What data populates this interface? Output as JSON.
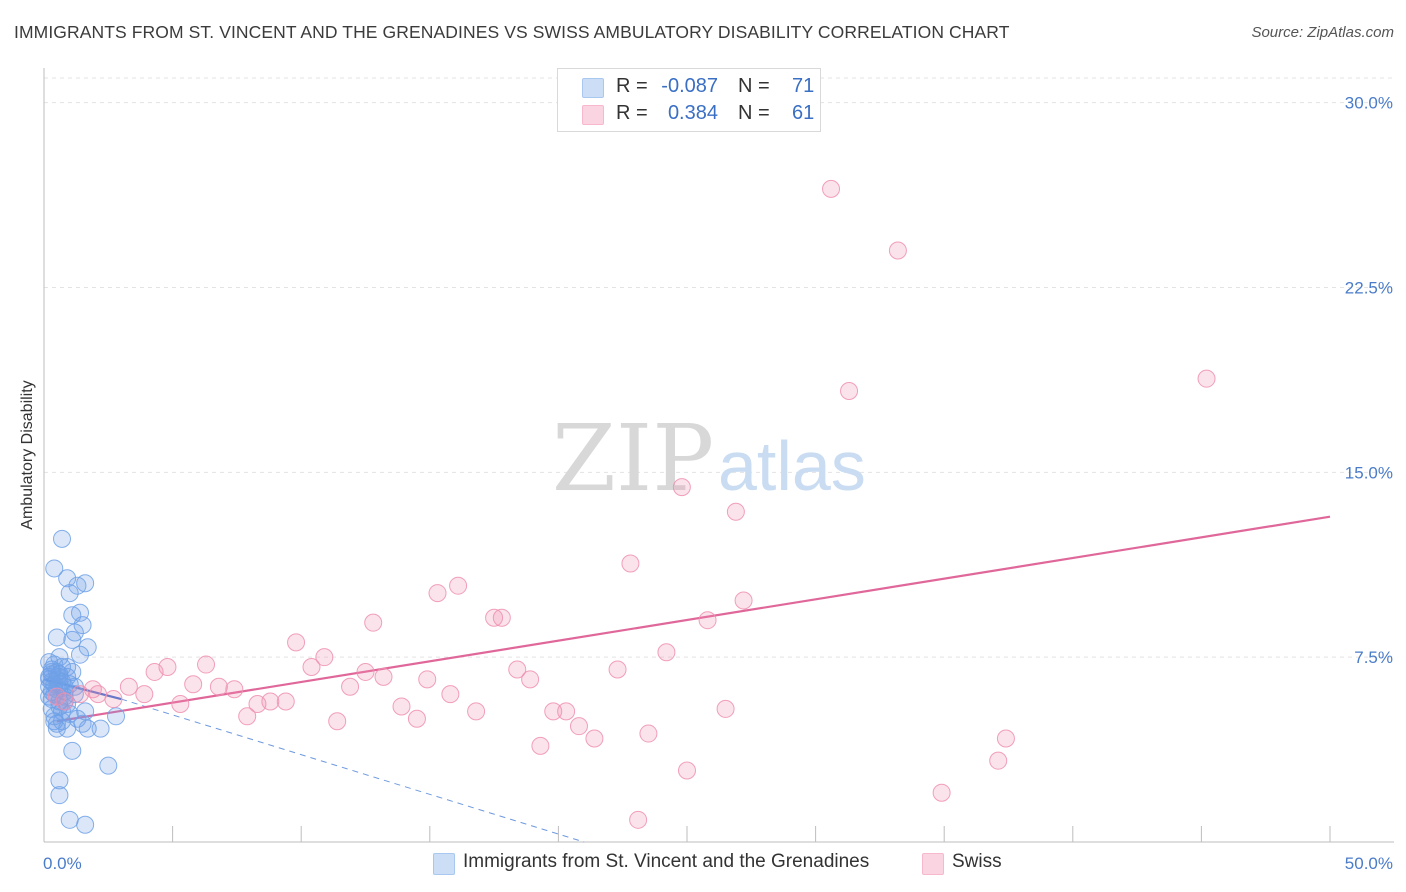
{
  "header": {
    "title": "IMMIGRANTS FROM ST. VINCENT AND THE GRENADINES VS SWISS AMBULATORY DISABILITY CORRELATION CHART",
    "source": "Source: ZipAtlas.com"
  },
  "watermark": {
    "zip": "ZIP",
    "atlas": "atlas"
  },
  "stats": {
    "rows": [
      {
        "r_label": "R =",
        "r_value": "-0.087",
        "n_label": "N =",
        "n_value": "71",
        "color": "#a9c8f0"
      },
      {
        "r_label": "R =",
        "r_value": "0.384",
        "n_label": "N =",
        "n_value": "61",
        "color": "#f7b8cb"
      }
    ]
  },
  "legend": {
    "items": [
      {
        "label": "Immigrants from St. Vincent and the Grenadines",
        "color": "#a9c8f0"
      },
      {
        "label": "Swiss",
        "color": "#f7b8cb"
      }
    ]
  },
  "chart_data": {
    "type": "scatter",
    "title": "IMMIGRANTS FROM ST. VINCENT AND THE GRENADINES VS SWISS AMBULATORY DISABILITY CORRELATION CHART",
    "xlabel": "",
    "ylabel": "Ambulatory Disability",
    "xlim": [
      0,
      50
    ],
    "ylim": [
      0,
      31
    ],
    "x_tick_labels": [
      "0.0%",
      "50.0%"
    ],
    "y_ticks": [
      7.5,
      15.0,
      22.5,
      30.0
    ],
    "y_tick_labels": [
      "7.5%",
      "15.0%",
      "22.5%",
      "30.0%"
    ],
    "grid": "horizontal dashed",
    "legend_position": "bottom-center",
    "series": [
      {
        "name": "Immigrants from St. Vincent and the Grenadines",
        "color": "#6fa1e6",
        "trend": {
          "x": [
            0,
            3
          ],
          "y": [
            6.6,
            5.8
          ],
          "dashed_extension": {
            "x": [
              3,
              21
            ],
            "y": [
              5.8,
              0.0
            ]
          }
        },
        "points": [
          [
            0.2,
            6.6
          ],
          [
            0.3,
            7.0
          ],
          [
            0.2,
            7.3
          ],
          [
            0.3,
            5.8
          ],
          [
            0.4,
            4.9
          ],
          [
            0.5,
            4.6
          ],
          [
            0.3,
            6.1
          ],
          [
            0.4,
            6.4
          ],
          [
            0.6,
            7.5
          ],
          [
            0.5,
            8.3
          ],
          [
            0.6,
            6.8
          ],
          [
            0.7,
            5.3
          ],
          [
            0.8,
            5.7
          ],
          [
            0.4,
            11.1
          ],
          [
            0.7,
            12.3
          ],
          [
            0.9,
            10.7
          ],
          [
            1.0,
            10.1
          ],
          [
            1.1,
            9.2
          ],
          [
            1.2,
            8.5
          ],
          [
            1.4,
            9.3
          ],
          [
            1.5,
            8.8
          ],
          [
            1.6,
            10.5
          ],
          [
            1.3,
            10.4
          ],
          [
            1.7,
            7.9
          ],
          [
            1.4,
            7.6
          ],
          [
            1.1,
            8.2
          ],
          [
            0.9,
            7.1
          ],
          [
            1.0,
            6.4
          ],
          [
            1.2,
            6.0
          ],
          [
            0.8,
            5.9
          ],
          [
            0.6,
            5.5
          ],
          [
            0.4,
            5.1
          ],
          [
            0.5,
            4.8
          ],
          [
            0.7,
            4.9
          ],
          [
            0.9,
            4.6
          ],
          [
            1.1,
            3.7
          ],
          [
            1.3,
            5.0
          ],
          [
            1.5,
            4.8
          ],
          [
            1.7,
            4.6
          ],
          [
            1.6,
            5.3
          ],
          [
            2.2,
            4.6
          ],
          [
            2.8,
            5.1
          ],
          [
            2.5,
            3.1
          ],
          [
            0.6,
            2.5
          ],
          [
            0.6,
            1.9
          ],
          [
            1.0,
            0.9
          ],
          [
            1.6,
            0.7
          ],
          [
            0.3,
            6.9
          ],
          [
            0.2,
            6.3
          ],
          [
            0.3,
            5.4
          ],
          [
            0.5,
            6.2
          ],
          [
            0.6,
            6.7
          ],
          [
            0.7,
            6.5
          ],
          [
            0.8,
            6.1
          ],
          [
            0.9,
            6.7
          ],
          [
            0.4,
            7.2
          ],
          [
            0.2,
            5.9
          ],
          [
            0.3,
            6.5
          ],
          [
            0.5,
            6.9
          ],
          [
            0.6,
            5.7
          ],
          [
            0.7,
            7.1
          ],
          [
            0.9,
            5.6
          ],
          [
            1.0,
            5.2
          ],
          [
            1.1,
            6.9
          ],
          [
            1.2,
            6.3
          ],
          [
            0.8,
            6.3
          ],
          [
            0.5,
            6.6
          ],
          [
            0.3,
            6.8
          ],
          [
            0.4,
            6.0
          ],
          [
            0.6,
            6.4
          ],
          [
            0.2,
            6.7
          ]
        ]
      },
      {
        "name": "Swiss",
        "color": "#ef8fb0",
        "trend": {
          "x": [
            0.5,
            50
          ],
          "y": [
            4.9,
            13.2
          ]
        },
        "points": [
          [
            0.8,
            5.7
          ],
          [
            1.4,
            6.0
          ],
          [
            2.1,
            6.0
          ],
          [
            2.7,
            5.8
          ],
          [
            3.3,
            6.3
          ],
          [
            3.9,
            6.0
          ],
          [
            4.3,
            6.9
          ],
          [
            4.8,
            7.1
          ],
          [
            5.3,
            5.6
          ],
          [
            5.8,
            6.4
          ],
          [
            6.3,
            7.2
          ],
          [
            6.8,
            6.3
          ],
          [
            7.4,
            6.2
          ],
          [
            7.9,
            5.1
          ],
          [
            8.3,
            5.6
          ],
          [
            8.8,
            5.7
          ],
          [
            9.4,
            5.7
          ],
          [
            9.8,
            8.1
          ],
          [
            10.4,
            7.1
          ],
          [
            10.9,
            7.5
          ],
          [
            11.4,
            4.9
          ],
          [
            11.9,
            6.3
          ],
          [
            12.5,
            6.9
          ],
          [
            12.8,
            8.9
          ],
          [
            13.2,
            6.7
          ],
          [
            13.9,
            5.5
          ],
          [
            14.5,
            5.0
          ],
          [
            14.9,
            6.6
          ],
          [
            15.3,
            10.1
          ],
          [
            15.8,
            6.0
          ],
          [
            16.1,
            10.4
          ],
          [
            16.8,
            5.3
          ],
          [
            17.5,
            9.1
          ],
          [
            17.8,
            9.1
          ],
          [
            18.4,
            7.0
          ],
          [
            18.9,
            6.6
          ],
          [
            19.3,
            3.9
          ],
          [
            19.8,
            5.3
          ],
          [
            20.3,
            5.3
          ],
          [
            20.8,
            4.7
          ],
          [
            21.4,
            4.2
          ],
          [
            22.3,
            7.0
          ],
          [
            22.8,
            11.3
          ],
          [
            23.1,
            0.9
          ],
          [
            23.5,
            4.4
          ],
          [
            24.2,
            7.7
          ],
          [
            24.8,
            14.4
          ],
          [
            25.0,
            2.9
          ],
          [
            25.8,
            9.0
          ],
          [
            26.5,
            5.4
          ],
          [
            26.9,
            13.4
          ],
          [
            27.2,
            9.8
          ],
          [
            30.6,
            26.5
          ],
          [
            31.3,
            18.3
          ],
          [
            33.2,
            24.0
          ],
          [
            34.9,
            2.0
          ],
          [
            37.1,
            3.3
          ],
          [
            37.4,
            4.2
          ],
          [
            45.2,
            18.8
          ],
          [
            0.5,
            5.9
          ],
          [
            1.9,
            6.2
          ]
        ]
      }
    ]
  }
}
